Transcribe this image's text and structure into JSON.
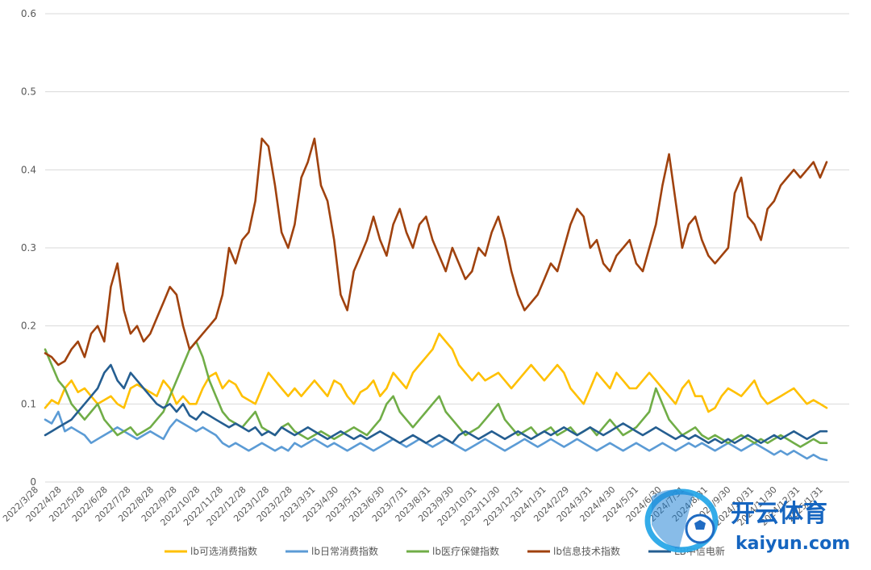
{
  "chart_data": {
    "type": "line",
    "title": "",
    "xlabel": "",
    "ylabel": "",
    "ylim": [
      0,
      0.6
    ],
    "yticks": [
      "0",
      "0.1",
      "0.2",
      "0.3",
      "0.4",
      "0.5",
      "0.6"
    ],
    "grid": true,
    "legend_position": "bottom",
    "x_ticks": [
      "2022/3/28",
      "2022/4/28",
      "2022/5/28",
      "2022/6/28",
      "2022/7/28",
      "2022/8/28",
      "2022/9/28",
      "2022/10/28",
      "2022/11/28",
      "2022/12/28",
      "2023/1/28",
      "2023/2/28",
      "2023/3/31",
      "2023/4/30",
      "2023/5/31",
      "2023/6/30",
      "2023/7/31",
      "2023/8/31",
      "2023/9/30",
      "2023/10/31",
      "2023/11/30",
      "2023/12/31",
      "2024/1/31",
      "2024/2/29",
      "2024/3/31",
      "2024/4/30",
      "2024/5/31",
      "2024/6/30",
      "2024/7/31",
      "2024/8/31",
      "2024/9/30",
      "2024/10/31",
      "2024/11/30",
      "2024/12/31",
      "2025/1/31"
    ],
    "series": [
      {
        "name": "lb可选消费指数",
        "color": "#FFC000",
        "values": [
          0.095,
          0.105,
          0.1,
          0.12,
          0.13,
          0.115,
          0.12,
          0.11,
          0.1,
          0.105,
          0.11,
          0.1,
          0.095,
          0.12,
          0.125,
          0.12,
          0.115,
          0.11,
          0.13,
          0.12,
          0.1,
          0.11,
          0.1,
          0.1,
          0.12,
          0.135,
          0.14,
          0.12,
          0.13,
          0.125,
          0.11,
          0.105,
          0.1,
          0.12,
          0.14,
          0.13,
          0.12,
          0.11,
          0.12,
          0.11,
          0.12,
          0.13,
          0.12,
          0.11,
          0.13,
          0.125,
          0.11,
          0.1,
          0.115,
          0.12,
          0.13,
          0.11,
          0.12,
          0.14,
          0.13,
          0.12,
          0.14,
          0.15,
          0.16,
          0.17,
          0.19,
          0.18,
          0.17,
          0.15,
          0.14,
          0.13,
          0.14,
          0.13,
          0.135,
          0.14,
          0.13,
          0.12,
          0.13,
          0.14,
          0.15,
          0.14,
          0.13,
          0.14,
          0.15,
          0.14,
          0.12,
          0.11,
          0.1,
          0.12,
          0.14,
          0.13,
          0.12,
          0.14,
          0.13,
          0.12,
          0.12,
          0.13,
          0.14,
          0.13,
          0.12,
          0.11,
          0.1,
          0.12,
          0.13,
          0.11,
          0.11,
          0.09,
          0.095,
          0.11,
          0.12,
          0.115,
          0.11,
          0.12,
          0.13,
          0.11,
          0.1,
          0.105,
          0.11,
          0.115,
          0.12,
          0.11,
          0.1,
          0.105,
          0.1,
          0.095
        ]
      },
      {
        "name": "lb日常消费指数",
        "color": "#5B9BD5",
        "values": [
          0.08,
          0.075,
          0.09,
          0.065,
          0.07,
          0.065,
          0.06,
          0.05,
          0.055,
          0.06,
          0.065,
          0.07,
          0.065,
          0.06,
          0.055,
          0.06,
          0.065,
          0.06,
          0.055,
          0.07,
          0.08,
          0.075,
          0.07,
          0.065,
          0.07,
          0.065,
          0.06,
          0.05,
          0.045,
          0.05,
          0.045,
          0.04,
          0.045,
          0.05,
          0.045,
          0.04,
          0.045,
          0.04,
          0.05,
          0.045,
          0.05,
          0.055,
          0.05,
          0.045,
          0.05,
          0.045,
          0.04,
          0.045,
          0.05,
          0.045,
          0.04,
          0.045,
          0.05,
          0.055,
          0.05,
          0.045,
          0.05,
          0.055,
          0.05,
          0.045,
          0.05,
          0.055,
          0.05,
          0.045,
          0.04,
          0.045,
          0.05,
          0.055,
          0.05,
          0.045,
          0.04,
          0.045,
          0.05,
          0.055,
          0.05,
          0.045,
          0.05,
          0.055,
          0.05,
          0.045,
          0.05,
          0.055,
          0.05,
          0.045,
          0.04,
          0.045,
          0.05,
          0.045,
          0.04,
          0.045,
          0.05,
          0.045,
          0.04,
          0.045,
          0.05,
          0.045,
          0.04,
          0.045,
          0.05,
          0.045,
          0.05,
          0.045,
          0.04,
          0.045,
          0.05,
          0.045,
          0.04,
          0.045,
          0.05,
          0.045,
          0.04,
          0.035,
          0.04,
          0.035,
          0.04,
          0.035,
          0.03,
          0.035,
          0.03,
          0.028
        ]
      },
      {
        "name": "lb医疗保健指数",
        "color": "#70AD47",
        "values": [
          0.17,
          0.15,
          0.13,
          0.12,
          0.1,
          0.09,
          0.08,
          0.09,
          0.1,
          0.08,
          0.07,
          0.06,
          0.065,
          0.07,
          0.06,
          0.065,
          0.07,
          0.08,
          0.09,
          0.11,
          0.13,
          0.15,
          0.17,
          0.18,
          0.16,
          0.13,
          0.11,
          0.09,
          0.08,
          0.075,
          0.07,
          0.08,
          0.09,
          0.07,
          0.065,
          0.06,
          0.07,
          0.075,
          0.065,
          0.06,
          0.055,
          0.06,
          0.065,
          0.06,
          0.055,
          0.06,
          0.065,
          0.07,
          0.065,
          0.06,
          0.07,
          0.08,
          0.1,
          0.11,
          0.09,
          0.08,
          0.07,
          0.08,
          0.09,
          0.1,
          0.11,
          0.09,
          0.08,
          0.07,
          0.06,
          0.065,
          0.07,
          0.08,
          0.09,
          0.1,
          0.08,
          0.07,
          0.06,
          0.065,
          0.07,
          0.06,
          0.065,
          0.07,
          0.06,
          0.065,
          0.07,
          0.06,
          0.065,
          0.07,
          0.06,
          0.07,
          0.08,
          0.07,
          0.06,
          0.065,
          0.07,
          0.08,
          0.09,
          0.12,
          0.1,
          0.08,
          0.07,
          0.06,
          0.065,
          0.07,
          0.06,
          0.055,
          0.06,
          0.055,
          0.05,
          0.055,
          0.06,
          0.055,
          0.05,
          0.055,
          0.05,
          0.055,
          0.06,
          0.055,
          0.05,
          0.045,
          0.05,
          0.055,
          0.05,
          0.05
        ]
      },
      {
        "name": "lb信息技术指数",
        "color": "#A0420E",
        "values": [
          0.165,
          0.16,
          0.15,
          0.155,
          0.17,
          0.18,
          0.16,
          0.19,
          0.2,
          0.18,
          0.25,
          0.28,
          0.22,
          0.19,
          0.2,
          0.18,
          0.19,
          0.21,
          0.23,
          0.25,
          0.24,
          0.2,
          0.17,
          0.18,
          0.19,
          0.2,
          0.21,
          0.24,
          0.3,
          0.28,
          0.31,
          0.32,
          0.36,
          0.44,
          0.43,
          0.38,
          0.32,
          0.3,
          0.33,
          0.39,
          0.41,
          0.44,
          0.38,
          0.36,
          0.31,
          0.24,
          0.22,
          0.27,
          0.29,
          0.31,
          0.34,
          0.31,
          0.29,
          0.33,
          0.35,
          0.32,
          0.3,
          0.33,
          0.34,
          0.31,
          0.29,
          0.27,
          0.3,
          0.28,
          0.26,
          0.27,
          0.3,
          0.29,
          0.32,
          0.34,
          0.31,
          0.27,
          0.24,
          0.22,
          0.23,
          0.24,
          0.26,
          0.28,
          0.27,
          0.3,
          0.33,
          0.35,
          0.34,
          0.3,
          0.31,
          0.28,
          0.27,
          0.29,
          0.3,
          0.31,
          0.28,
          0.27,
          0.3,
          0.33,
          0.38,
          0.42,
          0.36,
          0.3,
          0.33,
          0.34,
          0.31,
          0.29,
          0.28,
          0.29,
          0.3,
          0.37,
          0.39,
          0.34,
          0.33,
          0.31,
          0.35,
          0.36,
          0.38,
          0.39,
          0.4,
          0.39,
          0.4,
          0.41,
          0.39,
          0.41
        ]
      },
      {
        "name": "LB中信电新",
        "color": "#255E91",
        "values": [
          0.06,
          0.065,
          0.07,
          0.075,
          0.08,
          0.09,
          0.1,
          0.11,
          0.12,
          0.14,
          0.15,
          0.13,
          0.12,
          0.14,
          0.13,
          0.12,
          0.11,
          0.1,
          0.095,
          0.1,
          0.09,
          0.1,
          0.085,
          0.08,
          0.09,
          0.085,
          0.08,
          0.075,
          0.07,
          0.075,
          0.07,
          0.065,
          0.07,
          0.06,
          0.065,
          0.06,
          0.07,
          0.065,
          0.06,
          0.065,
          0.07,
          0.065,
          0.06,
          0.055,
          0.06,
          0.065,
          0.06,
          0.055,
          0.06,
          0.055,
          0.06,
          0.065,
          0.06,
          0.055,
          0.05,
          0.055,
          0.06,
          0.055,
          0.05,
          0.055,
          0.06,
          0.055,
          0.05,
          0.06,
          0.065,
          0.06,
          0.055,
          0.06,
          0.065,
          0.06,
          0.055,
          0.06,
          0.065,
          0.06,
          0.055,
          0.06,
          0.065,
          0.06,
          0.065,
          0.07,
          0.065,
          0.06,
          0.065,
          0.07,
          0.065,
          0.06,
          0.065,
          0.07,
          0.075,
          0.07,
          0.065,
          0.06,
          0.065,
          0.07,
          0.065,
          0.06,
          0.055,
          0.06,
          0.055,
          0.06,
          0.055,
          0.05,
          0.055,
          0.05,
          0.055,
          0.05,
          0.055,
          0.06,
          0.055,
          0.05,
          0.055,
          0.06,
          0.055,
          0.06,
          0.065,
          0.06,
          0.055,
          0.06,
          0.065,
          0.065
        ]
      }
    ]
  },
  "watermark": {
    "brand_cn": "开云体育",
    "brand_url": "kaiyun.com"
  }
}
